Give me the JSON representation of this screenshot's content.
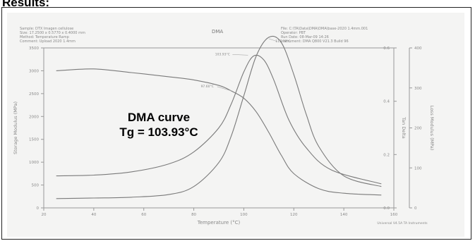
{
  "page": {
    "heading": "Results:"
  },
  "scan_header": {
    "left_lines": [
      "Sample: DTX Imagen cellulose",
      "Size: 17.2500 x 0.5770 x 0.4000 mm",
      "Method: Temperature Ramp",
      "Comment: Upload 2020 1.4mm"
    ],
    "title": "DMA",
    "right_lines": [
      "File: C:\\TA\\Data\\DMA\\DMA\\base-2020 1.4mm.001",
      "Operator: PBT",
      "Run Date: 08-Mar-09 14:26",
      "Instrument: DMA Q800 V21.3 Build 96"
    ]
  },
  "overlay": {
    "line1": "DMA curve",
    "line2": "Tg = 103.93°C"
  },
  "colors": {
    "curve": "#7a7a7a",
    "axis": "#999999",
    "scan_background": "#f4f4f3"
  },
  "chart_data": {
    "type": "line",
    "title": "DMA",
    "xlabel": "Temperature (°C)",
    "ylabel_left": "Storage Modulus (MPa)",
    "ylabel_right_inner": "Tan Delta",
    "ylabel_right_outer": "Loss Modulus (MPa)",
    "xlim": [
      20,
      160
    ],
    "x_ticks": [
      "20",
      "40",
      "60",
      "80",
      "100",
      "120",
      "140",
      "160"
    ],
    "left_ylim": [
      0,
      3500
    ],
    "left_ticks": [
      "0",
      "500",
      "1000",
      "1500",
      "2000",
      "2500",
      "3000",
      "3500"
    ],
    "right_inner_ticks": [
      "0.0",
      "0.2",
      "0.4",
      "0.6"
    ],
    "right_outer_ticks": [
      "0",
      "100",
      "200",
      "300",
      "400"
    ],
    "annotations": [
      "103.93°C",
      "115.78°C",
      "97.60°C"
    ],
    "footer": "Universal V4.5A TA Instruments",
    "series": [
      {
        "name": "Storage Modulus",
        "axis": "left",
        "x": [
          25,
          40,
          55,
          70,
          80,
          90,
          95,
          100,
          105,
          110,
          115,
          120,
          130,
          140,
          155
        ],
        "y": [
          3000,
          3040,
          2960,
          2870,
          2800,
          2680,
          2560,
          2400,
          2100,
          1650,
          1150,
          750,
          420,
          320,
          280
        ]
      },
      {
        "name": "Tan Delta",
        "axis": "right_inner",
        "x": [
          25,
          40,
          55,
          70,
          80,
          90,
          95,
          100,
          105,
          110,
          115,
          120,
          125,
          130,
          140,
          155
        ],
        "y": [
          0.035,
          0.037,
          0.04,
          0.05,
          0.08,
          0.17,
          0.27,
          0.42,
          0.57,
          0.64,
          0.62,
          0.5,
          0.35,
          0.23,
          0.12,
          0.08
        ]
      },
      {
        "name": "Loss Modulus",
        "axis": "right_outer",
        "x": [
          25,
          40,
          55,
          70,
          80,
          90,
          95,
          100,
          103.93,
          108,
          112,
          118,
          125,
          135,
          155
        ],
        "y": [
          80,
          82,
          90,
          110,
          140,
          200,
          260,
          340,
          380,
          370,
          320,
          220,
          150,
          95,
          60
        ]
      }
    ]
  }
}
